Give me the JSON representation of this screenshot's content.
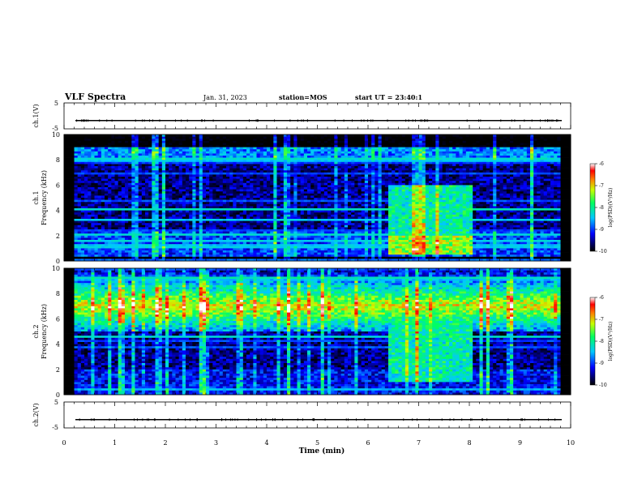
{
  "header": {
    "title": "VLF Spectra",
    "date": "Jan. 31, 2023",
    "station": "station=MOS",
    "start": "start UT =  23:40:1"
  },
  "chart_data": {
    "type": "heatmap",
    "xlabel": "Time (min)",
    "xlim": [
      0,
      10
    ],
    "xticks": [
      "0",
      "1",
      "2",
      "3",
      "4",
      "5",
      "6",
      "7",
      "8",
      "9",
      "10"
    ],
    "panels": [
      {
        "id": "ch1-voltage",
        "ylabel": "ch.1(V)",
        "ylim": [
          -5,
          5
        ],
        "yticks": [
          "5",
          "-5"
        ],
        "level": -1.8
      },
      {
        "id": "ch1-spectrogram",
        "ylabel_line1": "ch.1",
        "ylabel_line2": "Frequency (kHz)",
        "ylim": [
          0,
          10
        ],
        "yticks": [
          "0",
          "2",
          "4",
          "6",
          "8",
          "10"
        ],
        "emission_band_khz": [
          0.3,
          9.0
        ],
        "enhancement": {
          "t_min": [
            6.4,
            8.1
          ],
          "f_khz": [
            0.5,
            6.0
          ]
        }
      },
      {
        "id": "ch2-spectrogram",
        "ylabel_line1": "ch.2",
        "ylabel_line2": "Frequency (kHz)",
        "ylim": [
          0,
          10
        ],
        "yticks": [
          "0",
          "2",
          "4",
          "6",
          "8",
          "10"
        ],
        "emission_band_khz": [
          5.0,
          10.0
        ],
        "enhancement": {
          "t_min": [
            6.4,
            8.1
          ],
          "f_khz": [
            1.0,
            6.0
          ]
        }
      },
      {
        "id": "ch2-voltage",
        "ylabel": "ch.2(V)",
        "ylim": [
          -5,
          5
        ],
        "yticks": [
          "5",
          "-5"
        ],
        "level": -1.8
      }
    ],
    "colorbar": {
      "label": "log(PSD)(V²/Hz)",
      "range": [
        -10,
        -6
      ],
      "ticks": [
        "-6",
        "-7",
        "-8",
        "-9",
        "-10"
      ]
    }
  }
}
